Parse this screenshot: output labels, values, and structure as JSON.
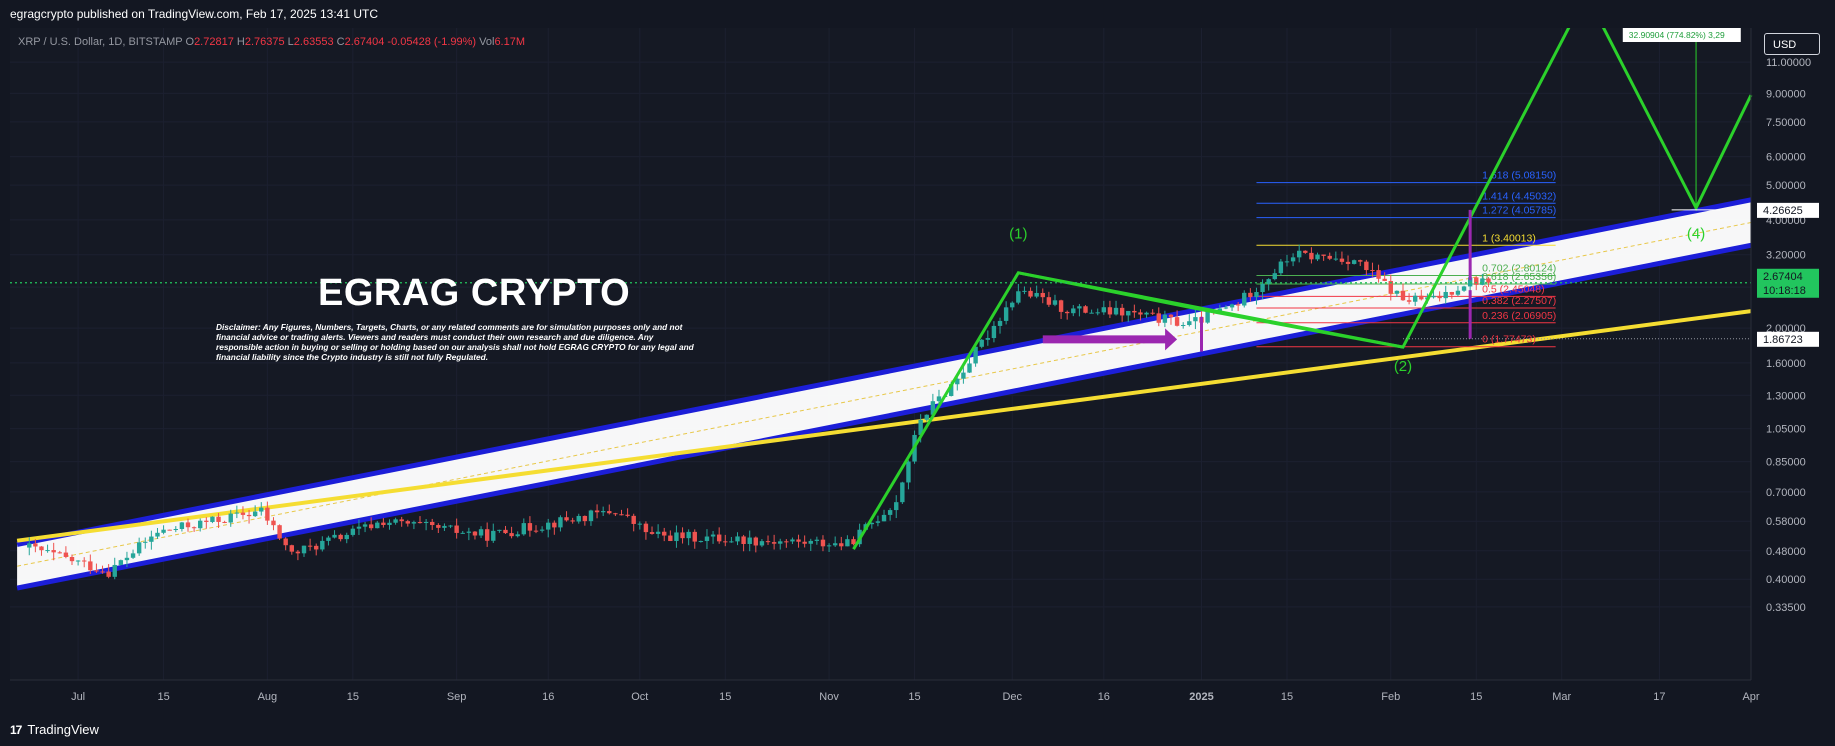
{
  "header": {
    "published": "egragcrypto published on TradingView.com, Feb 17, 2025 13:41 UTC"
  },
  "legend": {
    "symbol": "XRP / U.S. Dollar, 1D, BITSTAMP",
    "o_label": "O",
    "o": "2.72817",
    "h_label": "H",
    "h": "2.76375",
    "l_label": "L",
    "l": "2.63553",
    "c_label": "C",
    "c": "2.67404",
    "change": "-0.05428 (-1.99%)",
    "vol_label": "Vol",
    "vol": "6.17M"
  },
  "currency_button": "USD",
  "brand_title": "EGRAG CRYPTO",
  "disclaimer": "Disclaimer: Any Figures, Numbers, Targets, Charts, or any related comments are for simulation purposes only and not financial advice or trading alerts. Viewers and readers must conduct their own research and due diligence. Any responsible action in buying or selling or holding based on our analysis shall not hold EGRAG CRYPTO for any legal and financial liability since the Crypto industry is still not fully Regulated.",
  "footer": {
    "logo_mark": "17",
    "logo_text": "TradingView"
  },
  "colors": {
    "background": "#131722",
    "up": "#26a69a",
    "down": "#ef5350",
    "channel": "#1c1ed8",
    "support": "#f5dd32",
    "wave": "#2bd12b",
    "arrow": "#9b27b0"
  },
  "chart_data": {
    "type": "candlestick",
    "y_scale": "log",
    "ylim": [
      0.31,
      13.0
    ],
    "y_ticks": [
      "11.00000",
      "9.00000",
      "7.50000",
      "6.00000",
      "5.00000",
      "4.00000",
      "3.20000",
      "2.60000",
      "2.00000",
      "1.60000",
      "1.30000",
      "1.05000",
      "0.85000",
      "0.70000",
      "0.58000",
      "0.48000",
      "0.40000",
      "0.33500"
    ],
    "x_ticks": [
      "Jul",
      "15",
      "Aug",
      "15",
      "Sep",
      "16",
      "Oct",
      "15",
      "Nov",
      "15",
      "Dec",
      "16",
      "2025",
      "15",
      "Feb",
      "15",
      "Mar",
      "17",
      "Apr"
    ],
    "price_labels": [
      {
        "text": "4.26625",
        "value": 4.26625,
        "style": "white"
      },
      {
        "text": "2.67404",
        "value": 2.67404,
        "style": "green"
      },
      {
        "text": "10:18:18",
        "value": 2.67404,
        "style": "green-timer"
      },
      {
        "text": "1.86723",
        "value": 1.86723,
        "style": "white"
      }
    ],
    "projection_label": "32.90904 (774.82%) 3,29",
    "wave_labels": [
      "(1)",
      "(2)",
      "(4)"
    ],
    "fib_levels": [
      {
        "label": "1.618 (5.08150)",
        "value": 5.0815,
        "color": "#2962ff"
      },
      {
        "label": "1.414 (4.45032)",
        "value": 4.45032,
        "color": "#2962ff"
      },
      {
        "label": "1.272 (4.05785)",
        "value": 4.05785,
        "color": "#2962ff"
      },
      {
        "label": "1 (3.40013)",
        "value": 3.40013,
        "color": "#f5dd32"
      },
      {
        "label": "0.702 (2.80124)",
        "value": 2.80124,
        "color": "#4caf50"
      },
      {
        "label": "0.618 (2.65356)",
        "value": 2.65356,
        "color": "#4caf50"
      },
      {
        "label": "0.5 (2.45048)",
        "value": 2.45048,
        "color": "#f23645"
      },
      {
        "label": "0.382 (2.27507)",
        "value": 2.27507,
        "color": "#f23645"
      },
      {
        "label": "0.236 (2.06905)",
        "value": 2.06905,
        "color": "#f23645"
      },
      {
        "label": "0 (1.77473)",
        "value": 1.77473,
        "color": "#f23645"
      }
    ],
    "keypoints": [
      {
        "date": "2024-06-23",
        "price": 0.49
      },
      {
        "date": "2024-07-06",
        "price": 0.42
      },
      {
        "date": "2024-07-14",
        "price": 0.54
      },
      {
        "date": "2024-07-31",
        "price": 0.62
      },
      {
        "date": "2024-08-05",
        "price": 0.47
      },
      {
        "date": "2024-08-20",
        "price": 0.58
      },
      {
        "date": "2024-09-06",
        "price": 0.53
      },
      {
        "date": "2024-09-27",
        "price": 0.62
      },
      {
        "date": "2024-10-03",
        "price": 0.53
      },
      {
        "date": "2024-11-04",
        "price": 0.5
      },
      {
        "date": "2024-11-12",
        "price": 0.66
      },
      {
        "date": "2024-11-16",
        "price": 1.12
      },
      {
        "date": "2024-11-22",
        "price": 1.45
      },
      {
        "date": "2024-12-02",
        "price": 2.55
      },
      {
        "date": "2024-12-10",
        "price": 2.25
      },
      {
        "date": "2024-12-20",
        "price": 2.2
      },
      {
        "date": "2024-12-30",
        "price": 2.05
      },
      {
        "date": "2025-01-07",
        "price": 2.35
      },
      {
        "date": "2025-01-16",
        "price": 3.2
      },
      {
        "date": "2025-01-26",
        "price": 3.1
      },
      {
        "date": "2025-02-03",
        "price": 2.4
      },
      {
        "date": "2025-02-08",
        "price": 2.4
      },
      {
        "date": "2025-02-14",
        "price": 2.72
      },
      {
        "date": "2025-02-17",
        "price": 2.67404
      }
    ],
    "lines": {
      "channel_upper": [
        {
          "date": "2024-06-21",
          "price": 0.5
        },
        {
          "date": "2025-04-01",
          "price": 4.55
        }
      ],
      "channel_lower": [
        {
          "date": "2024-06-21",
          "price": 0.378
        },
        {
          "date": "2025-04-01",
          "price": 3.4
        }
      ],
      "support": [
        {
          "date": "2024-06-21",
          "price": 0.512
        },
        {
          "date": "2025-04-01",
          "price": 2.23
        }
      ],
      "wave": [
        {
          "date": "2024-11-05",
          "price": 0.485
        },
        {
          "date": "2024-12-02",
          "price": 2.85
        },
        {
          "date": "2025-02-03",
          "price": 1.77
        },
        {
          "date": "2025-03-05",
          "price": 17.0
        },
        {
          "date": "2025-03-23",
          "price": 4.32
        },
        {
          "date": "2025-04-01",
          "price": 8.9
        }
      ],
      "triangle": [
        {
          "date": "2024-12-02",
          "price": 2.85
        },
        {
          "date": "2025-01-01",
          "price": 2.25
        },
        {
          "date": "2025-02-03",
          "price": 1.77
        }
      ]
    }
  }
}
